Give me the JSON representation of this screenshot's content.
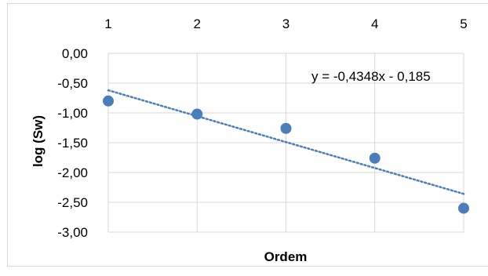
{
  "chart_data": {
    "type": "scatter",
    "title": "",
    "xlabel": "Ordem",
    "ylabel": "log (Sw)",
    "x_ticks": [
      "1",
      "2",
      "3",
      "4",
      "5"
    ],
    "y_ticks": [
      "0,00",
      "-0,50",
      "-1,00",
      "-1,50",
      "-2,00",
      "-2,50",
      "-3,00"
    ],
    "y_tick_values": [
      0,
      -0.5,
      -1,
      -1.5,
      -2,
      -2.5,
      -3
    ],
    "xlim": [
      1,
      5
    ],
    "ylim": [
      -3,
      0
    ],
    "x_axis_position": "top",
    "grid": true,
    "series": [
      {
        "x": [
          1,
          2,
          3,
          4,
          5
        ],
        "y": [
          -0.8,
          -1.02,
          -1.26,
          -1.76,
          -2.6
        ]
      }
    ],
    "trendline": {
      "type": "linear",
      "slope": -0.4348,
      "intercept": -0.185,
      "equation": "y = -0,4348x - 0,185"
    },
    "colors": {
      "marker": "#4a7ebb",
      "trendline": "#4a7ebb",
      "grid": "#d9d9d9",
      "frame": "#d9d9d9"
    }
  }
}
